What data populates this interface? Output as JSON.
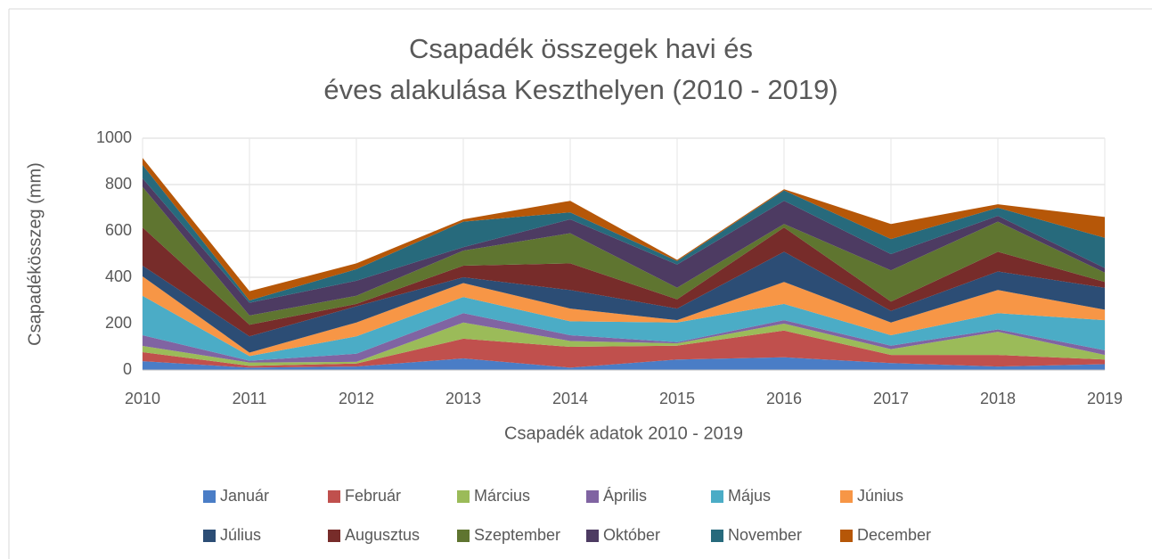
{
  "chart_data": {
    "type": "stacked_area",
    "title": [
      "Csapadék összegek havi és",
      "éves alakulása Keszthelyen (2010 - 2019)"
    ],
    "x_label": "Csapadék adatok 2010 - 2019",
    "y_label": "Csapadékösszeg (mm)",
    "categories": [
      "2010",
      "2011",
      "2012",
      "2013",
      "2014",
      "2015",
      "2016",
      "2017",
      "2018",
      "2019"
    ],
    "ylim": [
      0,
      1000
    ],
    "yticks": [
      0,
      200,
      400,
      600,
      800,
      1000
    ],
    "grid": true,
    "legend": "bottom",
    "series": [
      {
        "name": "Január",
        "color": "#4a7dc6",
        "values": [
          38,
          10,
          15,
          50,
          10,
          45,
          55,
          30,
          15,
          25
        ]
      },
      {
        "name": "Február",
        "color": "#c0504d",
        "values": [
          39,
          8,
          13,
          85,
          90,
          60,
          115,
          35,
          50,
          20
        ]
      },
      {
        "name": "Március",
        "color": "#9bbb59",
        "values": [
          27,
          14,
          7,
          70,
          25,
          10,
          30,
          25,
          100,
          20
        ]
      },
      {
        "name": "Április",
        "color": "#8064a2",
        "values": [
          46,
          8,
          35,
          40,
          25,
          5,
          15,
          15,
          10,
          20
        ]
      },
      {
        "name": "Május",
        "color": "#4bacc6",
        "values": [
          170,
          20,
          75,
          70,
          60,
          85,
          70,
          45,
          70,
          130
        ]
      },
      {
        "name": "Június",
        "color": "#f79646",
        "values": [
          84,
          15,
          60,
          60,
          55,
          10,
          95,
          55,
          100,
          45
        ]
      },
      {
        "name": "Július",
        "color": "#2c4d75",
        "values": [
          46,
          70,
          70,
          25,
          80,
          50,
          130,
          50,
          80,
          95
        ]
      },
      {
        "name": "Augusztus",
        "color": "#772c2a",
        "values": [
          165,
          50,
          10,
          50,
          115,
          40,
          105,
          40,
          85,
          25
        ]
      },
      {
        "name": "Szeptember",
        "color": "#5f7530",
        "values": [
          175,
          40,
          35,
          65,
          130,
          50,
          15,
          135,
          130,
          40
        ]
      },
      {
        "name": "Október",
        "color": "#4d3b62",
        "values": [
          37,
          55,
          65,
          15,
          60,
          100,
          100,
          70,
          25,
          20
        ]
      },
      {
        "name": "November",
        "color": "#276a7c",
        "values": [
          58,
          10,
          50,
          110,
          30,
          15,
          45,
          65,
          35,
          130
        ]
      },
      {
        "name": "December",
        "color": "#b65708",
        "values": [
          30,
          40,
          25,
          10,
          50,
          5,
          5,
          65,
          15,
          90
        ]
      }
    ]
  }
}
